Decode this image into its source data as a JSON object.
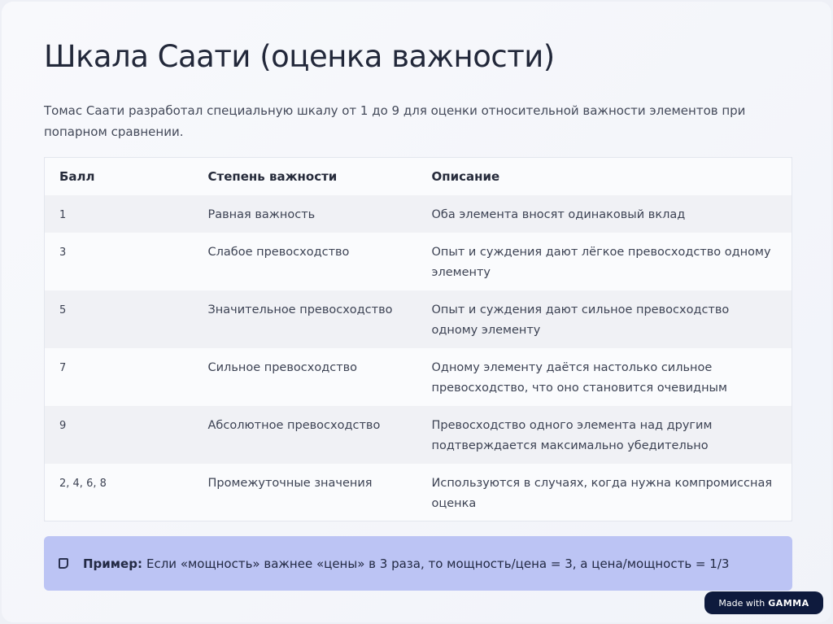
{
  "title": "Шкала Саати (оценка важности)",
  "intro": "Томас Саати разработал специальную шкалу от 1 до 9 для оценки относительной важности элементов при попарном сравнении.",
  "table": {
    "headers": [
      "Балл",
      "Степень важности",
      "Описание"
    ],
    "rows": [
      [
        "1",
        "Равная важность",
        "Оба элемента вносят одинаковый вклад"
      ],
      [
        "3",
        "Слабое превосходство",
        "Опыт и суждения дают лёгкое превосходство одному элементу"
      ],
      [
        "5",
        "Значительное превосходство",
        "Опыт и суждения дают сильное превосходство одному элементу"
      ],
      [
        "7",
        "Сильное превосходство",
        "Одному элементу даётся настолько сильное превосходство, что оно становится очевидным"
      ],
      [
        "9",
        "Абсолютное превосходство",
        "Превосходство одного элемента над другим подтверждается максимально убедительно"
      ],
      [
        "2, 4, 6, 8",
        "Промежуточные значения",
        "Используются в случаях, когда нужна компромиссная оценка"
      ]
    ]
  },
  "note": {
    "icon": "note-icon",
    "label": "Пример:",
    "text": "Если «мощность» важнее «цены» в 3 раза, то мощность/цена = 3, а цена/мощность = 1/3",
    "color": "#bcc4f4"
  },
  "badge": {
    "prefix": "Made with",
    "logo": "GAMMA"
  }
}
